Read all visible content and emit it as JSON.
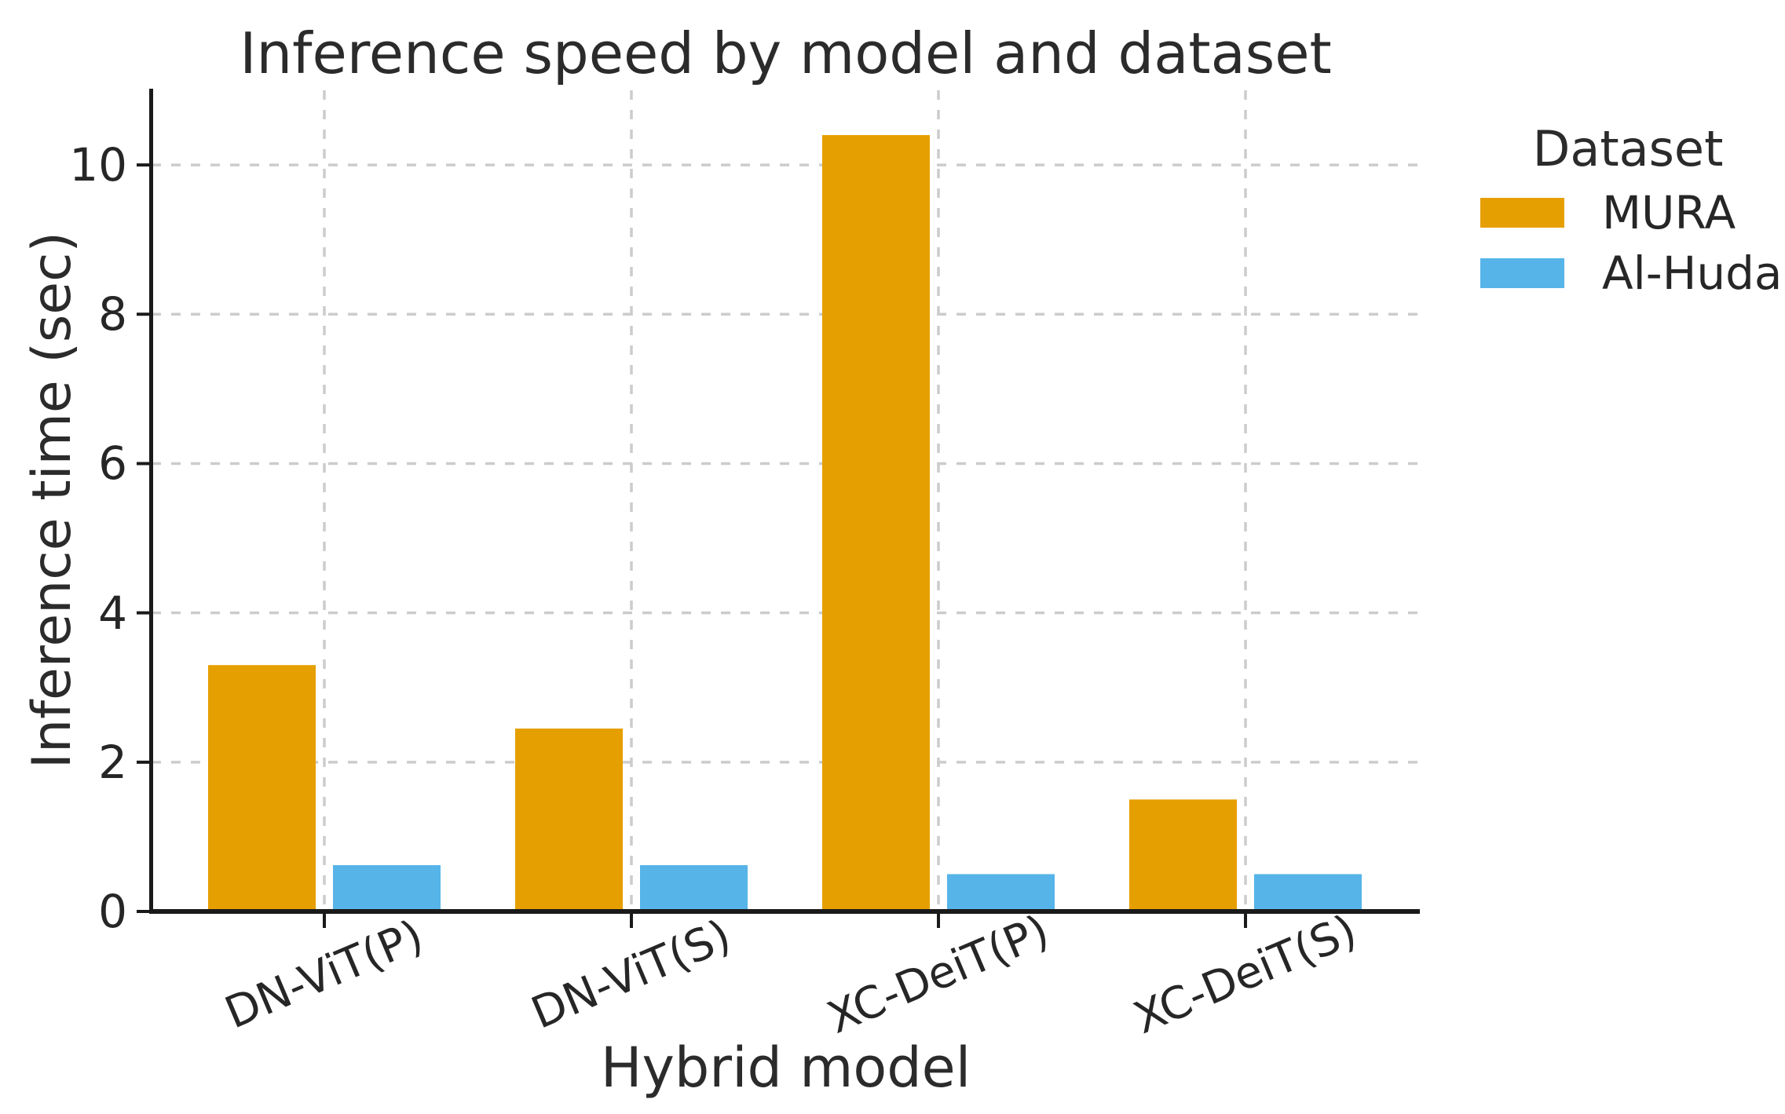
{
  "chart_data": {
    "type": "bar",
    "title": "Inference speed by model and dataset",
    "xlabel": "Hybrid model",
    "ylabel": "Inference time (sec)",
    "categories": [
      "DN-ViT(P)",
      "DN-ViT(S)",
      "XC-DeiT(P)",
      "XC-DeiT(S)"
    ],
    "series": [
      {
        "name": "MURA",
        "color": "#E69F00",
        "values": [
          3.3,
          2.45,
          10.4,
          1.5
        ]
      },
      {
        "name": "Al-Huda",
        "color": "#56B4E9",
        "values": [
          0.62,
          0.62,
          0.5,
          0.5
        ]
      }
    ],
    "legend": {
      "title": "Dataset",
      "position": "right-outside"
    },
    "y_ticks": [
      0,
      2,
      4,
      6,
      8,
      10
    ],
    "ylim": [
      0,
      11
    ],
    "grid": {
      "style": "dashed",
      "color": "#cccccc",
      "horizontal": true,
      "vertical": true
    },
    "axis_color": "#1a1a1a",
    "text_color": "#262626"
  }
}
